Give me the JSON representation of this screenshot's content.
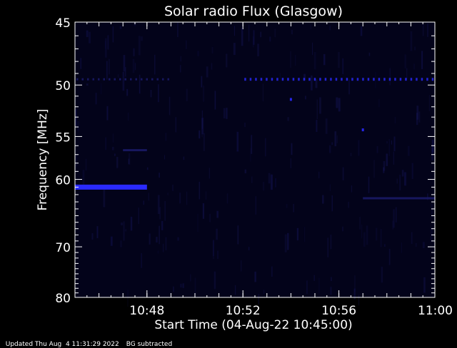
{
  "chart_data": {
    "type": "heatmap",
    "title": "Solar radio Flux (Glasgow)",
    "xlabel": "Start Time (04-Aug-22 10:45:00)",
    "ylabel": "Frequency [MHz]",
    "x_range": [
      "10:45",
      "11:00"
    ],
    "x_ticks": [
      "10:48",
      "10:52",
      "10:56",
      "11:00"
    ],
    "y_range": [
      45,
      80
    ],
    "y_scale": "reciprocal",
    "y_ticks": [
      45,
      50,
      55,
      60,
      70,
      80
    ],
    "grid": false,
    "colors": {
      "background": "#000000",
      "plot_background": "#03031a",
      "signal": "#2a2aff",
      "faint_signal": "#1a1a66",
      "text": "#ffffff"
    },
    "emission_bands": [
      {
        "freq": 49.5,
        "start": "10:45",
        "end": "10:49",
        "intensity": "faint",
        "dashed": true
      },
      {
        "freq": 49.5,
        "start": "10:52",
        "end": "11:00",
        "intensity": "moderate",
        "dashed": true
      },
      {
        "freq": 61.0,
        "start": "10:45",
        "end": "10:48",
        "intensity": "strong",
        "dashed": false
      },
      {
        "freq": 56.5,
        "start": "10:47",
        "end": "10:48",
        "intensity": "faint",
        "dashed": false
      },
      {
        "freq": 62.5,
        "start": "10:57",
        "end": "11:00",
        "intensity": "faint",
        "dashed": false
      }
    ],
    "spots": [
      {
        "freq": 51.3,
        "time": "10:54",
        "intensity": "moderate"
      },
      {
        "freq": 54.3,
        "time": "10:57",
        "intensity": "moderate"
      }
    ]
  },
  "footer": {
    "updated": "Updated Thu Aug  4 11:31:29 2022",
    "note": "BG subtracted"
  }
}
